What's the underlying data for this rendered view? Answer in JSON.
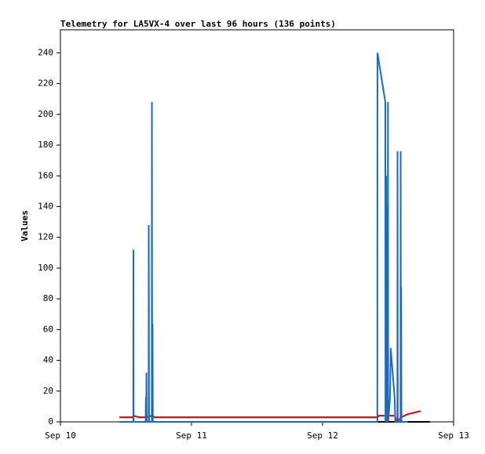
{
  "chart_data": {
    "type": "line",
    "title": "Telemetry for LA5VX-4 over last 96 hours (136 points)",
    "y_label": "Values",
    "xlim": [
      10,
      13
    ],
    "xticks": [
      {
        "value": 10,
        "label": "Sep 10"
      },
      {
        "value": 11,
        "label": "Sep 11"
      },
      {
        "value": 12,
        "label": "Sep 12"
      },
      {
        "value": 13,
        "label": "Sep 13"
      }
    ],
    "ylim": [
      0,
      255
    ],
    "yticks": [
      0,
      20,
      40,
      60,
      80,
      100,
      120,
      140,
      160,
      180,
      200,
      220,
      240
    ],
    "grid": false,
    "series": [
      {
        "color": "#000000",
        "x": [
          10.45,
          12.82
        ],
        "values": [
          0,
          0
        ]
      },
      {
        "color": "#e00000",
        "x": [
          10.45,
          10.55,
          10.556,
          10.6,
          10.65,
          10.7,
          10.72,
          12.42,
          12.43,
          12.48,
          12.55,
          12.57,
          12.6,
          12.65,
          12.75
        ],
        "values": [
          3,
          3,
          4,
          3,
          3,
          4,
          3,
          3,
          4,
          4,
          4,
          0,
          3,
          5,
          7
        ]
      },
      {
        "color": "#1a6bc0",
        "x": [
          10.45,
          10.556,
          10.557,
          10.558,
          10.65,
          10.652,
          10.655,
          10.656,
          10.658,
          10.673,
          10.674,
          10.676,
          10.697,
          10.698,
          10.7,
          10.703,
          10.705,
          12.418,
          12.419,
          12.479,
          12.48,
          12.485,
          12.487,
          12.49,
          12.492,
          12.494,
          12.496,
          12.499,
          12.501,
          12.515,
          12.52,
          12.55,
          12.555,
          12.571,
          12.572,
          12.574,
          12.595,
          12.596,
          12.598,
          12.6,
          12.602,
          12.65
        ],
        "values": [
          0,
          0,
          112,
          0,
          0,
          16,
          0,
          32,
          0,
          0,
          128,
          0,
          0,
          208,
          0,
          64,
          0,
          0,
          240,
          208,
          0,
          160,
          0,
          140,
          0,
          100,
          0,
          208,
          0,
          16,
          48,
          16,
          0,
          0,
          176,
          0,
          0,
          176,
          0,
          88,
          0,
          0
        ]
      }
    ]
  }
}
